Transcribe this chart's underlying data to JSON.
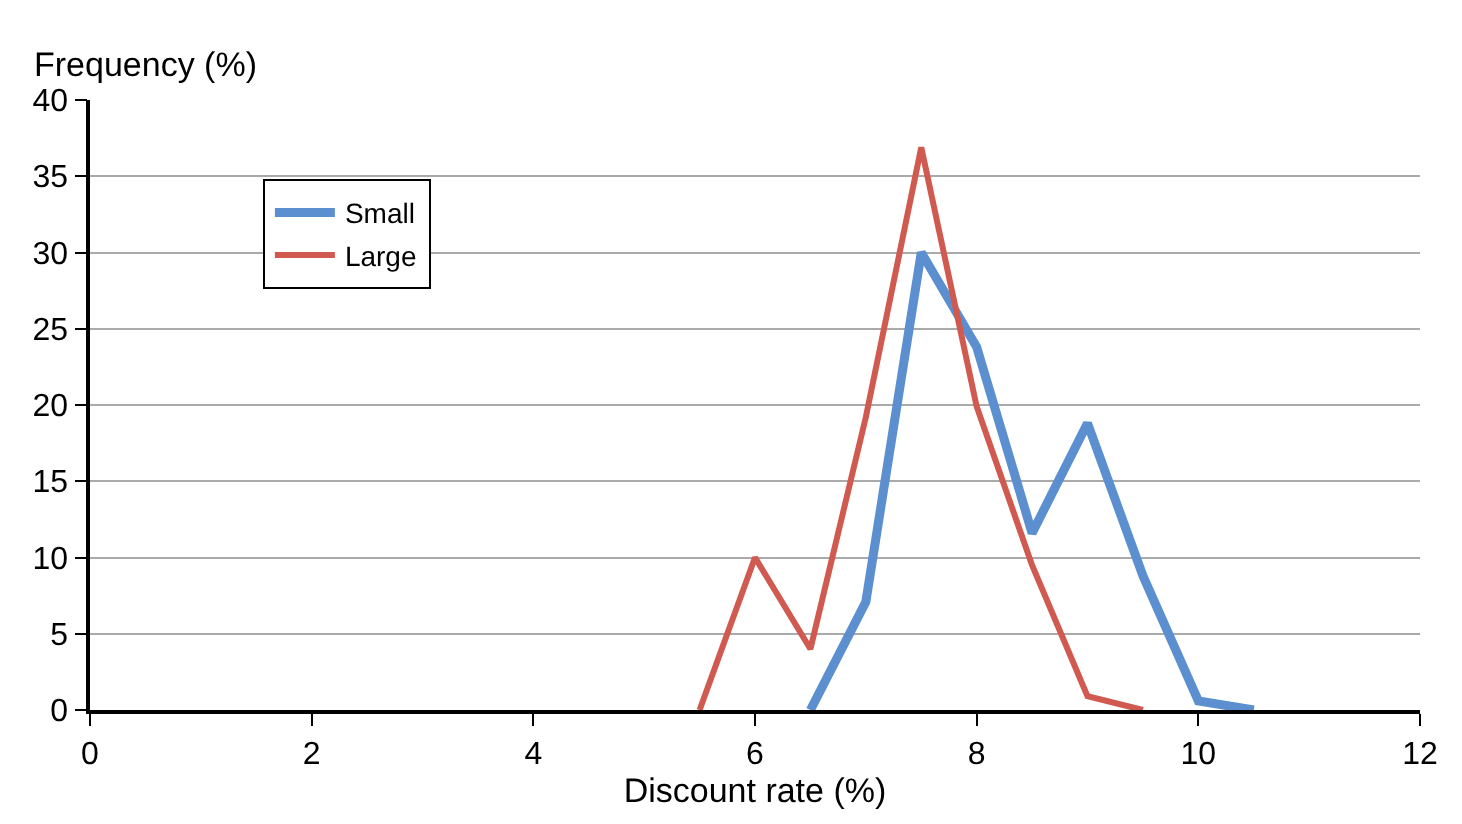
{
  "chart_data": {
    "type": "line",
    "xlabel": "Discount rate (%)",
    "ylabel": "Frequency (%)",
    "series": [
      {
        "name": "Small",
        "color": "#5b8fcf",
        "x": [
          6.5,
          7,
          7.5,
          8,
          8.5,
          9,
          9.5,
          10,
          10.5
        ],
        "values": [
          0,
          7.1,
          30,
          23.8,
          11.6,
          18.8,
          8.8,
          0.6,
          0
        ]
      },
      {
        "name": "Large",
        "color": "#d05a50",
        "x": [
          5.5,
          6,
          6.5,
          7,
          7.5,
          8,
          8.5,
          9,
          9.5
        ],
        "values": [
          0,
          10,
          4,
          19.2,
          36.9,
          19.9,
          9.5,
          0.9,
          0
        ]
      }
    ],
    "xlim": [
      0,
      12
    ],
    "xticks": [
      0,
      2,
      4,
      6,
      8,
      10,
      12
    ],
    "ylim": [
      0,
      40
    ],
    "yticks": [
      0,
      5,
      10,
      15,
      20,
      25,
      30,
      35,
      40
    ],
    "grid": "y",
    "legend": "top left",
    "marker": "none",
    "line_style": "solid"
  }
}
